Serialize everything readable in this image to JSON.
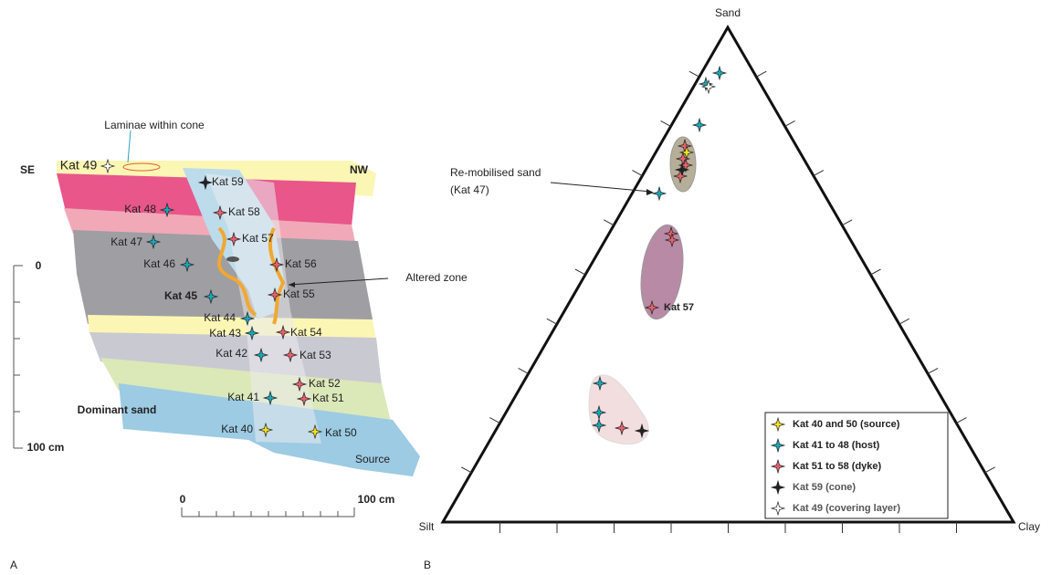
{
  "panel_a": {
    "label": "A",
    "annotation": "Laminae within cone",
    "left_label": "SE",
    "right_label": "NW",
    "samples": [
      "Kat 49",
      "Kat 59",
      "Kat 48",
      "Kat 58",
      "Kat 47",
      "Kat 57",
      "Kat 46",
      "Kat 56",
      "Kat 45",
      "Kat 55",
      "Kat 44",
      "Kat 54",
      "Kat 43",
      "Kat 42",
      "Kat 53",
      "Kat 52",
      "Kat 41",
      "Kat 51",
      "Kat 40",
      "Kat 50"
    ],
    "notes": [
      "Dominant sand",
      "Source",
      "Altered zone"
    ],
    "vertical_scale": [
      "0",
      "100 cm"
    ],
    "horizontal_scale": [
      "0",
      "100 cm"
    ]
  },
  "panel_b": {
    "label": "B",
    "vertices": [
      "Sand",
      "Silt",
      "Clay"
    ],
    "annotations": [
      "Re-mobilised sand",
      "(Kat 47)",
      "Kat 57"
    ],
    "legend": [
      "Kat 40 and 50 (source)",
      "Kat 41 to 48 (host)",
      "Kat 51 to 58 (dyke)",
      "Kat 59 (cone)",
      "Kat 49 (covering layer)"
    ]
  }
}
